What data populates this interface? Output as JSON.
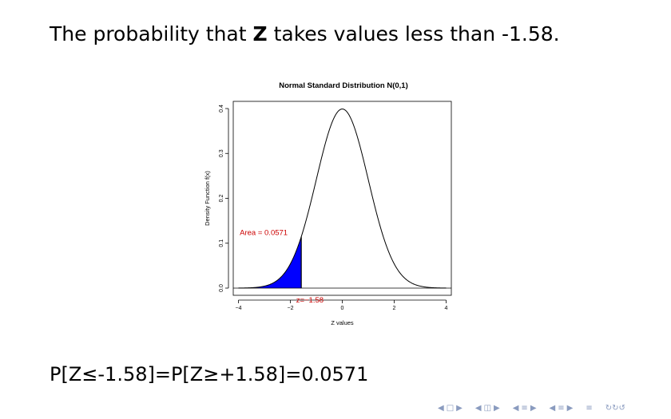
{
  "slide": {
    "heading_before": "The probability that ",
    "heading_bold": "Z",
    "heading_after": " takes values less than -1.58.",
    "formula": "P[Z≤-1.58]=P[Z≥+1.58]=0.0571"
  },
  "chart_data": {
    "type": "area",
    "title": "Normal Standard Distribution N(0,1)",
    "xlabel": "Z values",
    "ylabel": "Density Function f(x)",
    "xlim": [
      -4.2,
      4.2
    ],
    "ylim": [
      -0.016,
      0.416
    ],
    "x_ticks": [
      -4,
      -2,
      0,
      2,
      4
    ],
    "x_tick_labels": [
      "−4",
      "−2",
      "0",
      "2",
      "4"
    ],
    "y_ticks": [
      0.0,
      0.1,
      0.2,
      0.3,
      0.4
    ],
    "y_tick_labels": [
      "0.0",
      "0.1",
      "0.2",
      "0.3",
      "0.4"
    ],
    "curve": {
      "function": "standard normal density",
      "mean": 0,
      "sd": 1,
      "x_range": [
        -4,
        4
      ]
    },
    "shaded_region": {
      "from": -4,
      "to": -1.58,
      "color": "#0000ff"
    },
    "cutoff": -1.58,
    "area_annotation": "Area = 0.0571",
    "cutoff_annotation": "z=−1.58",
    "annotation_color": "#cc0000",
    "grid": false
  },
  "navigation": {
    "icons": [
      "nav-left-arrow-icon",
      "nav-frame-icon",
      "nav-right-arrow-icon",
      "nav-subsection-icon",
      "nav-section-icon",
      "nav-align-icon",
      "nav-search-icon"
    ]
  }
}
